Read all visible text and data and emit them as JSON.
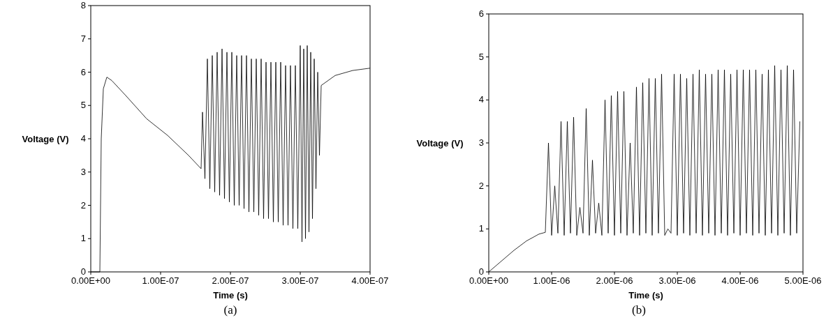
{
  "chart_data": [
    {
      "type": "line",
      "xlabel": "Time (s)",
      "ylabel": "Voltage (V)",
      "annotations": [
        "(a)"
      ],
      "xlim": [
        0,
        4e-07
      ],
      "ylim": [
        0,
        8
      ],
      "xticks": [
        {
          "value": 0,
          "label": "0.00E+00"
        },
        {
          "value": 1e-07,
          "label": "1.00E-07"
        },
        {
          "value": 2e-07,
          "label": "2.00E-07"
        },
        {
          "value": 3e-07,
          "label": "3.00E-07"
        },
        {
          "value": 4e-07,
          "label": "4.00E-07"
        }
      ],
      "yticks": [
        0,
        1,
        2,
        3,
        4,
        5,
        6,
        7,
        8
      ],
      "series": [
        {
          "color": "#000000",
          "x": [
            0,
            1.3e-08,
            1.5e-08,
            1.8e-08,
            2.3e-08,
            3e-08,
            5e-08,
            8e-08,
            1.1e-07,
            1.4e-07,
            1.58e-07,
            1.6e-07,
            1.635e-07,
            1.67e-07,
            1.705e-07,
            1.74e-07,
            1.775e-07,
            1.81e-07,
            1.845e-07,
            1.88e-07,
            1.915e-07,
            1.95e-07,
            1.985e-07,
            2.02e-07,
            2.055e-07,
            2.09e-07,
            2.125e-07,
            2.16e-07,
            2.195e-07,
            2.23e-07,
            2.265e-07,
            2.3e-07,
            2.335e-07,
            2.37e-07,
            2.405e-07,
            2.44e-07,
            2.475e-07,
            2.51e-07,
            2.545e-07,
            2.58e-07,
            2.615e-07,
            2.65e-07,
            2.685e-07,
            2.72e-07,
            2.755e-07,
            2.79e-07,
            2.825e-07,
            2.86e-07,
            2.895e-07,
            2.93e-07,
            2.965e-07,
            3e-07,
            3.025e-07,
            3.05e-07,
            3.075e-07,
            3.1e-07,
            3.125e-07,
            3.15e-07,
            3.175e-07,
            3.2e-07,
            3.225e-07,
            3.25e-07,
            3.275e-07,
            3.3e-07,
            3.5e-07,
            3.75e-07,
            4e-07
          ],
          "values": [
            0,
            0,
            4,
            5.5,
            5.85,
            5.75,
            5.3,
            4.6,
            4.1,
            3.5,
            3.1,
            4.8,
            2.8,
            6.4,
            2.5,
            6.5,
            2.4,
            6.6,
            2.3,
            6.7,
            2.2,
            6.6,
            2.1,
            6.6,
            2.0,
            6.5,
            2.0,
            6.5,
            1.9,
            6.5,
            1.8,
            6.4,
            1.8,
            6.4,
            1.7,
            6.4,
            1.6,
            6.3,
            1.6,
            6.3,
            1.5,
            6.3,
            1.5,
            6.3,
            1.4,
            6.2,
            1.4,
            6.2,
            1.3,
            6.2,
            1.3,
            6.8,
            0.9,
            6.7,
            1.0,
            6.8,
            1.2,
            6.6,
            1.6,
            6.4,
            2.5,
            6.0,
            3.5,
            5.6,
            5.9,
            6.05,
            6.12
          ]
        }
      ]
    },
    {
      "type": "line",
      "xlabel": "Time (s)",
      "ylabel": "Voltage (V)",
      "annotations": [
        "(b)"
      ],
      "xlim": [
        0,
        5e-06
      ],
      "ylim": [
        0,
        6
      ],
      "xticks": [
        {
          "value": 0,
          "label": "0.00E+00"
        },
        {
          "value": 1e-06,
          "label": "1.00E-06"
        },
        {
          "value": 2e-06,
          "label": "2.00E-06"
        },
        {
          "value": 3e-06,
          "label": "3.00E-06"
        },
        {
          "value": 4e-06,
          "label": "4.00E-06"
        },
        {
          "value": 5e-06,
          "label": "5.00E-06"
        }
      ],
      "yticks": [
        0,
        1,
        2,
        3,
        4,
        5,
        6
      ],
      "series": [
        {
          "color": "#000000",
          "x": [
            0,
            2e-07,
            4e-07,
            6e-07,
            8e-07,
            9e-07,
            9.5e-07,
            1e-06,
            1.05e-06,
            1.1e-06,
            1.15e-06,
            1.2e-06,
            1.25e-06,
            1.3e-06,
            1.35e-06,
            1.4e-06,
            1.45e-06,
            1.5e-06,
            1.55e-06,
            1.6e-06,
            1.65e-06,
            1.7e-06,
            1.75e-06,
            1.8e-06,
            1.85e-06,
            1.9e-06,
            1.95e-06,
            2e-06,
            2.05e-06,
            2.1e-06,
            2.15e-06,
            2.2e-06,
            2.25e-06,
            2.3e-06,
            2.35e-06,
            2.4e-06,
            2.45e-06,
            2.5e-06,
            2.55e-06,
            2.6e-06,
            2.65e-06,
            2.7e-06,
            2.75e-06,
            2.8e-06,
            2.85e-06,
            2.9e-06,
            2.95e-06,
            3e-06,
            3.05e-06,
            3.1e-06,
            3.15e-06,
            3.2e-06,
            3.25e-06,
            3.3e-06,
            3.35e-06,
            3.4e-06,
            3.45e-06,
            3.5e-06,
            3.55e-06,
            3.6e-06,
            3.65e-06,
            3.7e-06,
            3.75e-06,
            3.8e-06,
            3.85e-06,
            3.9e-06,
            3.95e-06,
            4e-06,
            4.05e-06,
            4.1e-06,
            4.15e-06,
            4.2e-06,
            4.25e-06,
            4.3e-06,
            4.35e-06,
            4.4e-06,
            4.45e-06,
            4.5e-06,
            4.55e-06,
            4.6e-06,
            4.65e-06,
            4.7e-06,
            4.75e-06,
            4.8e-06,
            4.85e-06,
            4.9e-06,
            4.95e-06
          ],
          "values": [
            0,
            0.25,
            0.5,
            0.72,
            0.88,
            0.92,
            3.0,
            0.85,
            2.0,
            0.9,
            3.5,
            0.85,
            3.5,
            0.9,
            3.6,
            0.85,
            1.5,
            0.9,
            3.8,
            0.85,
            2.6,
            0.9,
            1.6,
            0.85,
            4.0,
            0.9,
            4.1,
            0.85,
            4.2,
            0.9,
            4.2,
            0.85,
            3.0,
            0.9,
            4.3,
            0.85,
            4.4,
            0.9,
            4.5,
            0.85,
            4.5,
            0.9,
            4.6,
            0.85,
            1.0,
            0.9,
            4.6,
            0.85,
            4.6,
            0.9,
            4.5,
            0.85,
            4.6,
            0.9,
            4.7,
            0.85,
            4.6,
            0.9,
            4.6,
            0.85,
            4.7,
            0.9,
            4.7,
            0.85,
            4.6,
            0.9,
            4.7,
            0.85,
            4.7,
            0.9,
            4.7,
            0.85,
            4.7,
            0.9,
            4.6,
            0.85,
            4.7,
            0.9,
            4.8,
            0.85,
            4.7,
            0.9,
            4.8,
            0.85,
            4.7,
            0.9,
            3.5
          ]
        }
      ]
    }
  ]
}
